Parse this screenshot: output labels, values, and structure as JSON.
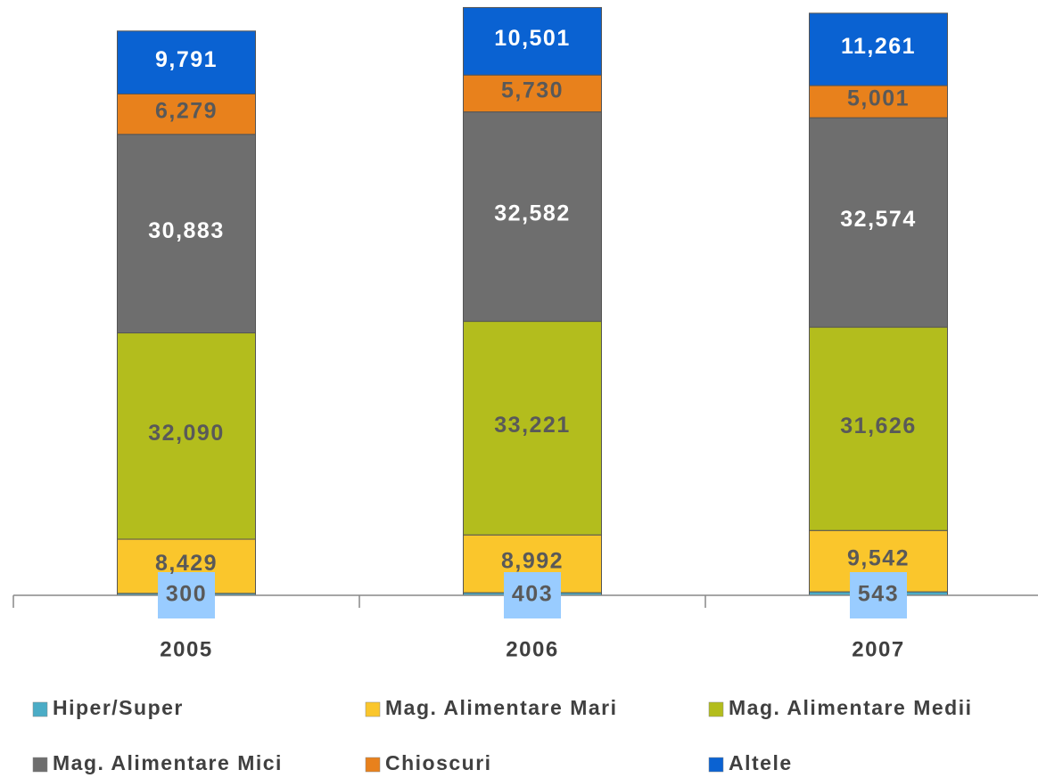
{
  "chart_data": {
    "type": "stacked_bar",
    "categories": [
      "2005",
      "2006",
      "2007"
    ],
    "ylim": [
      0,
      92600
    ],
    "series": [
      {
        "name": "Hiper/Super",
        "color": "#4bacc6",
        "label_color": "#595959",
        "label_background": "#99ccff",
        "values": [
          300,
          403,
          543
        ]
      },
      {
        "name": "Mag. Alimentare Mari",
        "color": "#fac62c",
        "label_color": "#595959",
        "values": [
          8429,
          8992,
          9542
        ],
        "value_labels": [
          "8,429",
          "8,992",
          "9,542"
        ]
      },
      {
        "name": "Mag. Alimentare Medii",
        "color": "#b3bd1d",
        "label_color": "#595959",
        "values": [
          32090,
          33221,
          31626
        ],
        "value_labels": [
          "32,090",
          "33,221",
          "31,626"
        ]
      },
      {
        "name": "Mag. Alimentare Mici",
        "color": "#6e6e6e",
        "label_color": "#ffffff",
        "values": [
          30883,
          32582,
          32574
        ],
        "value_labels": [
          "30,883",
          "32,582",
          "32,574"
        ]
      },
      {
        "name": "Chioscuri",
        "color": "#e8811c",
        "label_color": "#595959",
        "values": [
          6279,
          5730,
          5001
        ],
        "value_labels": [
          "6,279",
          "5,730",
          "5,001"
        ]
      },
      {
        "name": "Altele",
        "color": "#0a62d2",
        "label_color": "#ffffff",
        "values": [
          9791,
          10501,
          11261
        ],
        "value_labels": [
          "9,791",
          "10,501",
          "11,261"
        ]
      }
    ]
  }
}
